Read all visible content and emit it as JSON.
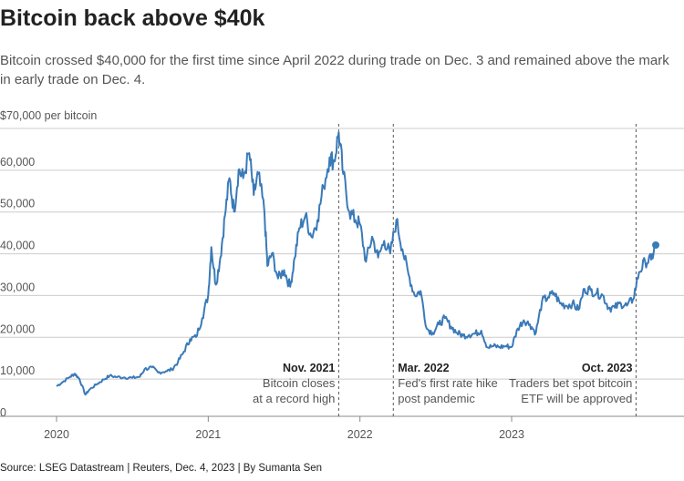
{
  "header": {
    "title": "Bitcoin back above $40k",
    "subtitle": "Bitcoin crossed $40,000 for the first time since April 2022 during trade on Dec. 3 and remained above the mark in early trade on Dec. 4."
  },
  "footer": {
    "source": "Source: LSEG Datastream | Reuters, Dec. 4, 2023 | By Sumanta Sen"
  },
  "colors": {
    "line": "#3a7ab8",
    "grid": "#cccccc",
    "annotation_line": "#555555"
  },
  "chart_data": {
    "type": "line",
    "ylabel": "$70,000 per bitcoin",
    "ylim": [
      0,
      70000
    ],
    "xlim": [
      2020.0,
      2024.07
    ],
    "grid": true,
    "y_ticks": [
      {
        "value": 10000,
        "label": "10,000"
      },
      {
        "value": 20000,
        "label": "20,000"
      },
      {
        "value": 30000,
        "label": "30,000"
      },
      {
        "value": 40000,
        "label": "40,000"
      },
      {
        "value": 50000,
        "label": "50,000"
      },
      {
        "value": 60000,
        "label": "60,000"
      },
      {
        "value": 0,
        "label": "0"
      }
    ],
    "x_ticks": [
      {
        "value": 2020,
        "label": "2020"
      },
      {
        "value": 2021,
        "label": "2021"
      },
      {
        "value": 2022,
        "label": "2022"
      },
      {
        "value": 2023,
        "label": "2023"
      }
    ],
    "annotations": [
      {
        "x": 2021.86,
        "date": "Nov. 2021",
        "lines": [
          "Bitcoin closes",
          "at a record high"
        ],
        "anchor": "end"
      },
      {
        "x": 2022.22,
        "date": "Mar. 2022",
        "lines": [
          "Fed's first rate hike",
          "post pandemic"
        ],
        "anchor": "start"
      },
      {
        "x": 2023.82,
        "date": "Oct. 2023",
        "lines": [
          "Traders bet spot bitcoin",
          "ETF will be approved"
        ],
        "anchor": "end"
      }
    ],
    "series": [
      {
        "values": [
          [
            2020.0,
            7200
          ],
          [
            2020.04,
            8200
          ],
          [
            2020.09,
            9500
          ],
          [
            2020.12,
            10200
          ],
          [
            2020.15,
            9000
          ],
          [
            2020.19,
            5200
          ],
          [
            2020.22,
            6500
          ],
          [
            2020.27,
            7800
          ],
          [
            2020.31,
            8800
          ],
          [
            2020.35,
            9700
          ],
          [
            2020.4,
            9400
          ],
          [
            2020.45,
            9300
          ],
          [
            2020.5,
            9200
          ],
          [
            2020.55,
            9500
          ],
          [
            2020.58,
            11300
          ],
          [
            2020.63,
            11700
          ],
          [
            2020.67,
            10500
          ],
          [
            2020.72,
            10800
          ],
          [
            2020.76,
            11200
          ],
          [
            2020.8,
            13000
          ],
          [
            2020.84,
            15500
          ],
          [
            2020.88,
            18500
          ],
          [
            2020.92,
            19000
          ],
          [
            2020.96,
            23500
          ],
          [
            2021.0,
            29000
          ],
          [
            2021.02,
            40500
          ],
          [
            2021.05,
            31500
          ],
          [
            2021.08,
            38000
          ],
          [
            2021.11,
            48000
          ],
          [
            2021.14,
            57000
          ],
          [
            2021.17,
            49000
          ],
          [
            2021.2,
            59000
          ],
          [
            2021.23,
            57000
          ],
          [
            2021.27,
            63000
          ],
          [
            2021.3,
            53000
          ],
          [
            2021.33,
            58000
          ],
          [
            2021.37,
            49000
          ],
          [
            2021.39,
            36000
          ],
          [
            2021.42,
            39000
          ],
          [
            2021.46,
            33000
          ],
          [
            2021.5,
            35000
          ],
          [
            2021.54,
            31000
          ],
          [
            2021.57,
            38000
          ],
          [
            2021.6,
            45000
          ],
          [
            2021.64,
            48000
          ],
          [
            2021.68,
            43000
          ],
          [
            2021.72,
            47000
          ],
          [
            2021.76,
            55000
          ],
          [
            2021.8,
            62000
          ],
          [
            2021.83,
            61000
          ],
          [
            2021.86,
            68000
          ],
          [
            2021.89,
            58000
          ],
          [
            2021.93,
            49000
          ],
          [
            2021.97,
            47000
          ],
          [
            2022.0,
            46000
          ],
          [
            2022.04,
            37000
          ],
          [
            2022.08,
            43000
          ],
          [
            2022.12,
            38000
          ],
          [
            2022.16,
            42000
          ],
          [
            2022.2,
            39000
          ],
          [
            2022.24,
            47000
          ],
          [
            2022.28,
            40000
          ],
          [
            2022.32,
            34000
          ],
          [
            2022.36,
            29000
          ],
          [
            2022.4,
            30000
          ],
          [
            2022.44,
            21000
          ],
          [
            2022.48,
            20000
          ],
          [
            2022.52,
            22000
          ],
          [
            2022.56,
            23500
          ],
          [
            2022.6,
            21500
          ],
          [
            2022.64,
            20000
          ],
          [
            2022.68,
            19300
          ],
          [
            2022.72,
            19500
          ],
          [
            2022.76,
            19800
          ],
          [
            2022.8,
            20500
          ],
          [
            2022.84,
            16500
          ],
          [
            2022.88,
            16800
          ],
          [
            2022.92,
            16600
          ],
          [
            2022.96,
            16800
          ],
          [
            2023.0,
            16600
          ],
          [
            2023.04,
            21000
          ],
          [
            2023.08,
            23000
          ],
          [
            2023.12,
            22000
          ],
          [
            2023.16,
            20000
          ],
          [
            2023.2,
            27500
          ],
          [
            2023.24,
            28500
          ],
          [
            2023.28,
            29500
          ],
          [
            2023.32,
            27000
          ],
          [
            2023.36,
            26500
          ],
          [
            2023.4,
            27000
          ],
          [
            2023.44,
            25500
          ],
          [
            2023.48,
            30500
          ],
          [
            2023.52,
            30200
          ],
          [
            2023.56,
            29500
          ],
          [
            2023.6,
            29000
          ],
          [
            2023.64,
            26000
          ],
          [
            2023.68,
            26000
          ],
          [
            2023.72,
            27000
          ],
          [
            2023.76,
            26500
          ],
          [
            2023.8,
            28000
          ],
          [
            2023.84,
            34500
          ],
          [
            2023.88,
            37000
          ],
          [
            2023.92,
            37500
          ],
          [
            2023.95,
            41000
          ]
        ]
      }
    ]
  }
}
